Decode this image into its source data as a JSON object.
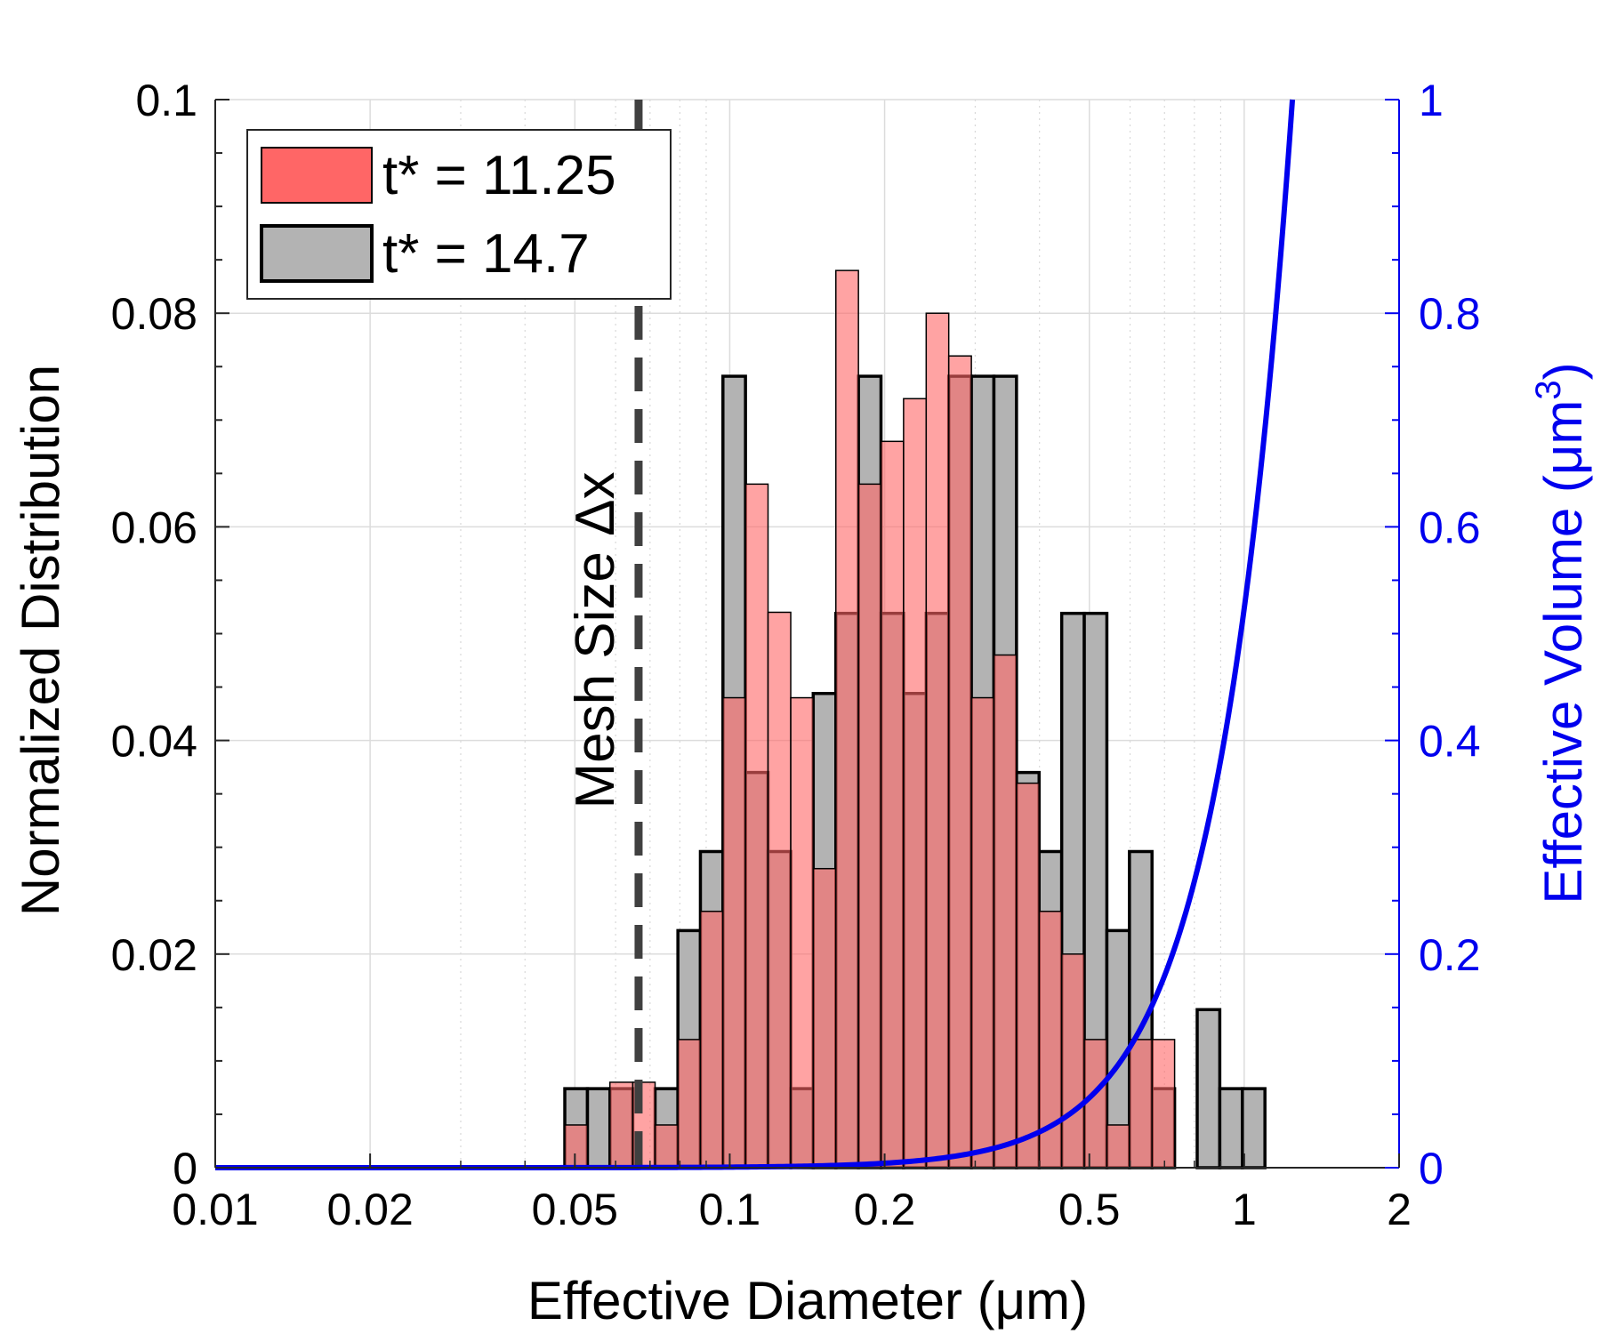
{
  "chart_data": {
    "type": "bar",
    "x_scale": "log",
    "xlim": [
      0.01,
      2
    ],
    "ylim": [
      0,
      0.1
    ],
    "y2lim": [
      0,
      1
    ],
    "xticks": [
      0.01,
      0.02,
      0.05,
      0.1,
      0.2,
      0.5,
      1,
      2
    ],
    "xtick_labels": [
      "0.01",
      "0.02",
      "0.05",
      "0.1",
      "0.2",
      "0.5",
      "1",
      "2"
    ],
    "yticks": [
      0,
      0.02,
      0.04,
      0.06,
      0.08,
      0.1
    ],
    "ytick_labels": [
      "0",
      "0.02",
      "0.04",
      "0.06",
      "0.08",
      "0.1"
    ],
    "y2ticks": [
      0,
      0.2,
      0.4,
      0.6,
      0.8,
      1
    ],
    "y2tick_labels": [
      "0",
      "0.2",
      "0.4",
      "0.6",
      "0.8",
      "1"
    ],
    "xlabel": "Effective Diameter (μm)",
    "ylabel": "Normalized Distribution",
    "y2label": "Effective Volume (μm",
    "y2label_sup": "3",
    "y2label_end": ")",
    "grid": true,
    "legend_position": "top-left",
    "bin_edges": [
      0.0478,
      0.0529,
      0.0585,
      0.0648,
      0.0716,
      0.0793,
      0.0877,
      0.097,
      0.1073,
      0.1187,
      0.1314,
      0.1453,
      0.1608,
      0.1779,
      0.1968,
      0.2177,
      0.2409,
      0.2665,
      0.2949,
      0.3262,
      0.3609,
      0.3993,
      0.4418,
      0.4888,
      0.5408,
      0.5983,
      0.6619,
      0.7323,
      0.8102,
      0.8964,
      0.9917,
      1.0972
    ],
    "series": [
      {
        "name": "t* = 11.25",
        "color": "#ff6666",
        "values": [
          0.004,
          0,
          0.008,
          0.008,
          0.004,
          0.012,
          0.024,
          0.044,
          0.064,
          0.052,
          0.044,
          0.028,
          0.084,
          0.064,
          0.068,
          0.072,
          0.08,
          0.076,
          0.044,
          0.048,
          0.036,
          0.024,
          0.02,
          0.012,
          0.004,
          0.012,
          0.012,
          0,
          0,
          0,
          0
        ]
      },
      {
        "name": "t* = 14.7",
        "color": "#b3b3b3",
        "values": [
          0.0074,
          0.0074,
          0.0074,
          0,
          0.0074,
          0.0222,
          0.0296,
          0.0741,
          0.037,
          0.0296,
          0.0074,
          0.0444,
          0.0519,
          0.0741,
          0.0519,
          0.0444,
          0.0519,
          0.0741,
          0.0741,
          0.0741,
          0.037,
          0.0296,
          0.0519,
          0.0519,
          0.0222,
          0.0296,
          0.0074,
          0,
          0.0148,
          0.0074,
          0.0074
        ]
      }
    ],
    "mesh_line": {
      "x": 0.0665,
      "label": "Mesh Size Δx"
    },
    "volume_curve": {
      "formula": "pi/6 * d^3",
      "color": "#0000ee"
    }
  }
}
